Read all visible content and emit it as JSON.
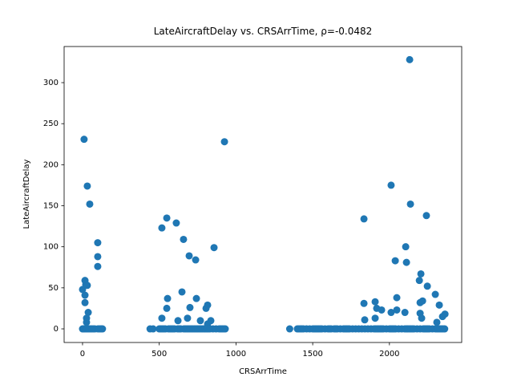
{
  "chart_data": {
    "type": "scatter",
    "title": "LateAircraftDelay vs. CRSArrTime, ρ=-0.0482",
    "x_label": "CRSArrTime",
    "y_label": "LateAircraftDelay",
    "color": "#1f77b4",
    "xlim": [
      -120,
      2471
    ],
    "ylim": [
      -16.6,
      344
    ],
    "xticks": [
      0,
      500,
      1000,
      1500,
      2000
    ],
    "yticks": [
      0,
      50,
      100,
      150,
      200,
      250,
      300
    ],
    "x": [
      10,
      31,
      47,
      99,
      99,
      99,
      0,
      16,
      21,
      31,
      16,
      16,
      37,
      26,
      26,
      925,
      517,
      549,
      611,
      658,
      695,
      737,
      857,
      648,
      554,
      742,
      815,
      805,
      700,
      549,
      517,
      622,
      684,
      768,
      836,
      815,
      2132,
      2011,
      2137,
      2241,
      1834,
      2106,
      2038,
      2111,
      2205,
      2195,
      2247,
      2299,
      2325,
      2048,
      1834,
      1907,
      1917,
      1949,
      2048,
      2011,
      2101,
      2200,
      2216,
      2200,
      2210,
      2346,
      2362,
      2309,
      1839,
      1907,
      0,
      5,
      10,
      20,
      30,
      40,
      50,
      60,
      70,
      80,
      100,
      110,
      120,
      130,
      440,
      460,
      500,
      510,
      520,
      530,
      540,
      560,
      570,
      580,
      590,
      600,
      620,
      630,
      640,
      660,
      670,
      680,
      690,
      700,
      710,
      720,
      730,
      740,
      750,
      760,
      770,
      780,
      790,
      800,
      810,
      820,
      830,
      850,
      870,
      890,
      900,
      910,
      920,
      930,
      1350,
      1400,
      1410,
      1420,
      1430,
      1440,
      1460,
      1480,
      1500,
      1510,
      1520,
      1530,
      1540,
      1550,
      1560,
      1580,
      1600,
      1610,
      1620,
      1640,
      1650,
      1660,
      1680,
      1700,
      1710,
      1720,
      1730,
      1740,
      1760,
      1780,
      1800,
      1820,
      1840,
      1860,
      1880,
      1900,
      1910,
      1920,
      1930,
      1940,
      1950,
      1960,
      1980,
      2000,
      2010,
      2020,
      2030,
      2040,
      2060,
      2080,
      2100,
      2110,
      2120,
      2130,
      2140,
      2150,
      2160,
      2180,
      2200,
      2220,
      2230,
      2240,
      2250,
      2260,
      2280,
      2300,
      2310,
      2320,
      2330,
      2340,
      2350,
      2360
    ],
    "values": [
      231,
      174,
      152,
      105,
      88,
      76,
      48,
      59,
      54,
      53,
      41,
      32,
      20,
      13,
      8,
      228,
      123,
      135,
      129,
      109,
      89,
      84,
      99,
      45,
      37,
      37,
      29,
      25,
      26,
      25,
      13,
      10,
      13,
      10,
      10,
      6,
      328,
      175,
      152,
      138,
      134,
      100,
      83,
      81,
      67,
      59,
      52,
      42,
      29,
      38,
      31,
      33,
      25,
      23,
      23,
      20,
      20,
      32,
      34,
      19,
      13,
      15,
      18,
      8,
      11,
      13,
      0,
      0,
      0,
      0,
      0,
      0,
      0,
      0,
      0,
      0,
      0,
      0,
      0,
      0,
      0,
      0,
      0,
      0,
      0,
      0,
      0,
      0,
      0,
      0,
      0,
      0,
      0,
      0,
      0,
      0,
      0,
      0,
      0,
      0,
      0,
      0,
      0,
      0,
      0,
      0,
      0,
      0,
      0,
      0,
      0,
      0,
      0,
      0,
      0,
      0,
      0,
      0,
      0,
      0,
      0,
      0,
      0,
      0,
      0,
      0,
      0,
      0,
      0,
      0,
      0,
      0,
      0,
      0,
      0,
      0,
      0,
      0,
      0,
      0,
      0,
      0,
      0,
      0,
      0,
      0,
      0,
      0,
      0,
      0,
      0,
      0,
      0,
      0,
      0,
      0,
      0,
      0,
      0,
      0,
      0,
      0,
      0,
      0,
      0,
      0,
      0,
      0,
      0,
      0,
      0,
      0,
      0,
      0,
      0,
      0,
      0,
      0,
      0,
      0,
      0,
      0,
      0,
      0,
      0,
      0,
      0,
      0,
      0,
      0,
      0,
      0
    ]
  }
}
